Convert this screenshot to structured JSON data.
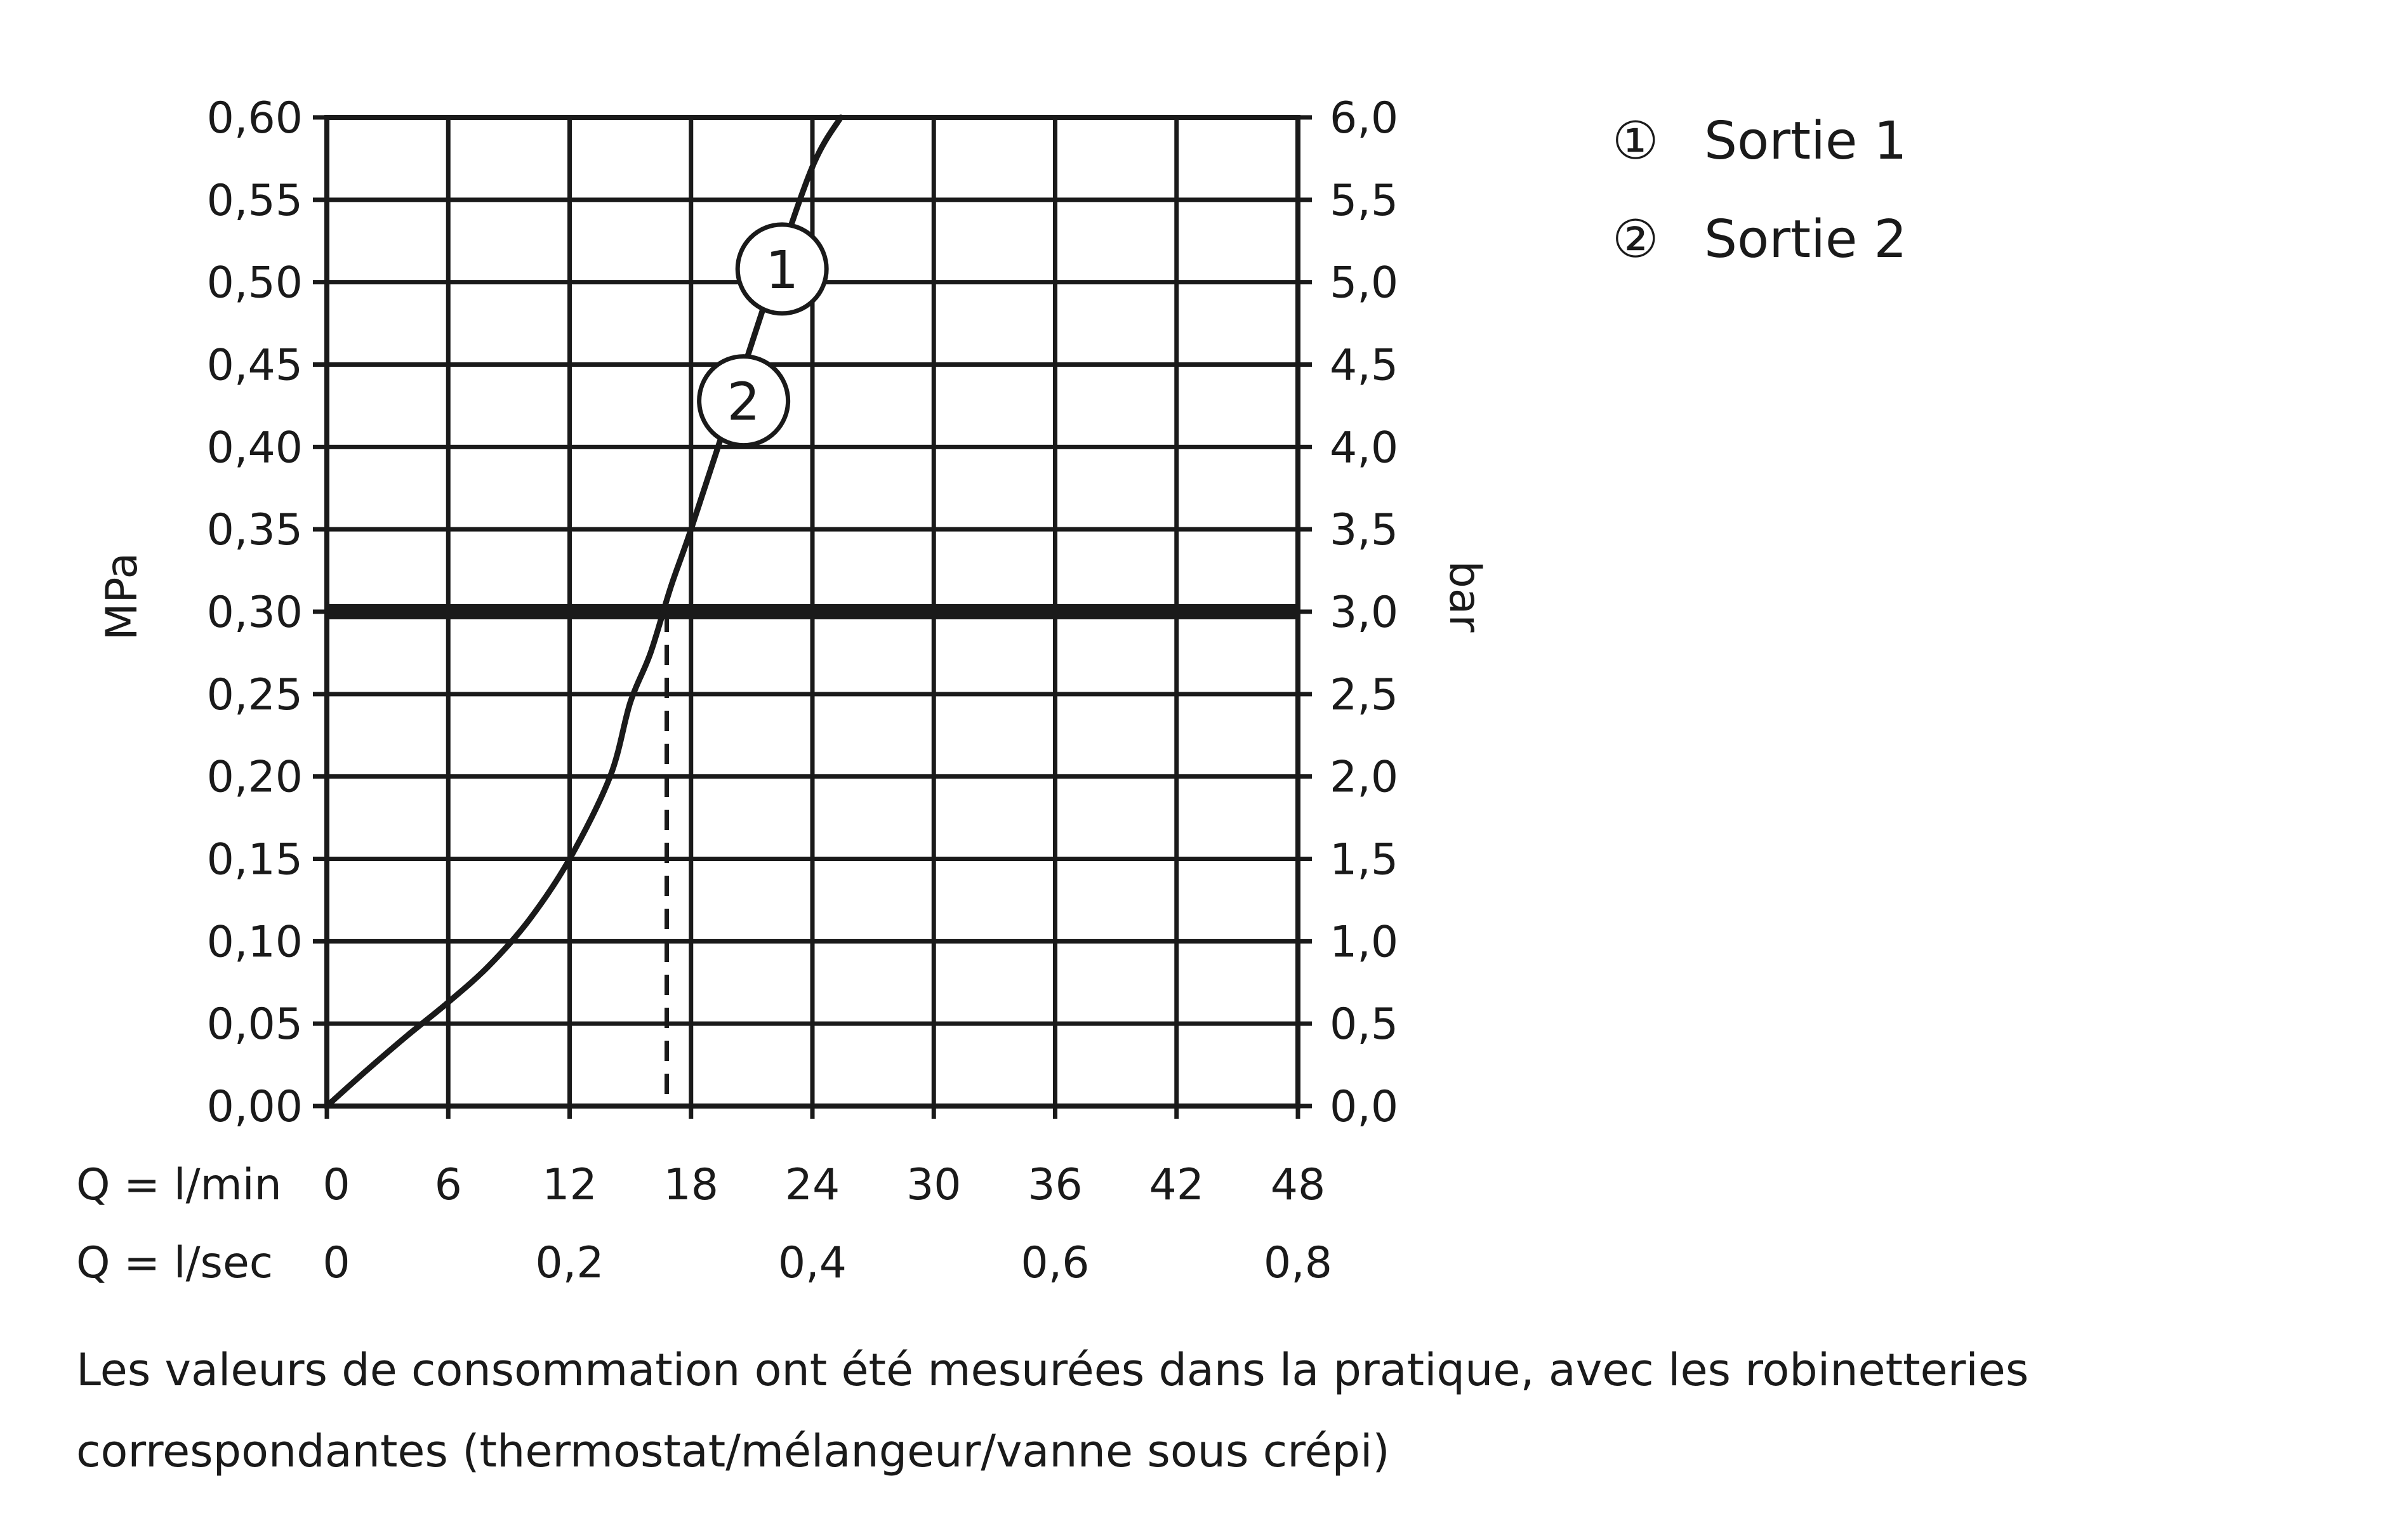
{
  "chart_data": {
    "type": "line",
    "y_left_label": "MPa",
    "y_right_label": "bar",
    "x_row1_label": "Q = l/min",
    "x_row2_label": "Q = l/sec",
    "x_ticks_lmin": [
      "0",
      "6",
      "12",
      "18",
      "24",
      "30",
      "36",
      "42",
      "48"
    ],
    "x_ticks_lsec": [
      "0",
      "0,2",
      "0,4",
      "0,6",
      "0,8"
    ],
    "y_ticks_mpa": [
      "0,00",
      "0,05",
      "0,10",
      "0,15",
      "0,20",
      "0,25",
      "0,30",
      "0,35",
      "0,40",
      "0,45",
      "0,50",
      "0,55",
      "0,60"
    ],
    "y_ticks_bar": [
      "0,0",
      "0,5",
      "1,0",
      "1,5",
      "2,0",
      "2,5",
      "3,0",
      "3,5",
      "4,0",
      "4,5",
      "5,0",
      "5,5",
      "6,0"
    ],
    "xlim": [
      0,
      48
    ],
    "ylim": [
      0,
      0.6
    ],
    "grid": true,
    "reference_line": {
      "y": 0.3,
      "x_at_intersection": 16.8
    },
    "series": [
      {
        "marker": "1",
        "x": [
          0,
          2,
          4,
          6,
          8,
          10,
          12,
          14,
          15,
          16,
          17,
          18,
          20,
          22,
          24,
          25.4
        ],
        "y": [
          0.0,
          0.022,
          0.043,
          0.063,
          0.085,
          0.113,
          0.15,
          0.2,
          0.245,
          0.275,
          0.315,
          0.35,
          0.425,
          0.5,
          0.57,
          0.6
        ]
      },
      {
        "marker": "2",
        "x": [
          0,
          2,
          4,
          6,
          8,
          10,
          12,
          14,
          15,
          16,
          17,
          18,
          20,
          22,
          24,
          25.4
        ],
        "y": [
          0.0,
          0.022,
          0.043,
          0.063,
          0.085,
          0.113,
          0.15,
          0.2,
          0.245,
          0.275,
          0.315,
          0.35,
          0.425,
          0.5,
          0.57,
          0.6
        ]
      }
    ],
    "series_labels": [
      {
        "marker": "1",
        "x": 22.5,
        "y": 0.508
      },
      {
        "marker": "2",
        "x": 20.6,
        "y": 0.428
      }
    ]
  },
  "legend": {
    "items": [
      {
        "marker": "①",
        "label": "Sortie 1"
      },
      {
        "marker": "②",
        "label": "Sortie 2"
      }
    ]
  },
  "footnote": {
    "line1": "Les valeurs de consommation ont été mesurées dans la pratique, avec les robinetteries",
    "line2": "correspondantes (thermostat/mélangeur/vanne sous crépi)"
  },
  "colors": {
    "ink": "#1a1a1a",
    "background": "#ffffff"
  }
}
